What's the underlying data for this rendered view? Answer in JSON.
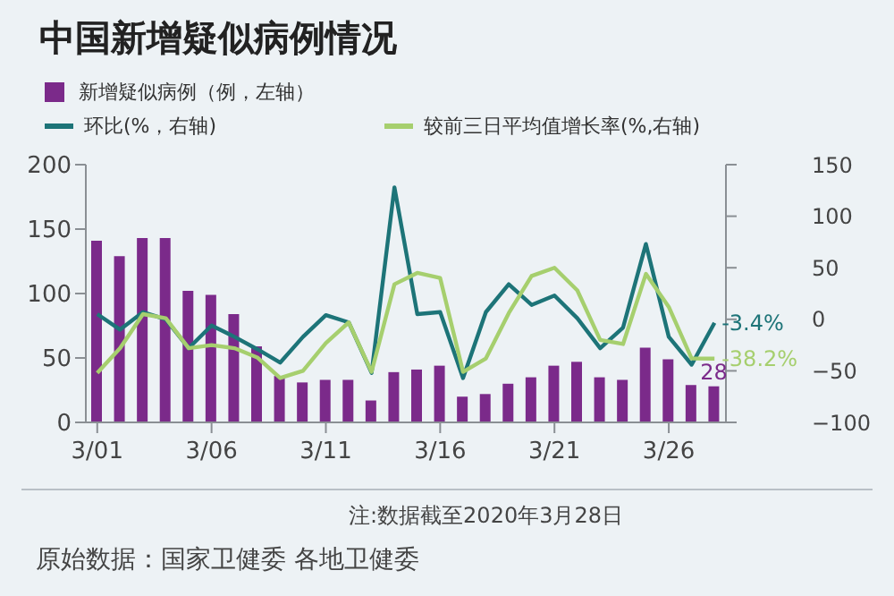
{
  "chart_data": {
    "type": "bar",
    "title": "中国新增疑似病例情况",
    "categories": [
      "3/01",
      null,
      null,
      null,
      null,
      "3/06",
      null,
      null,
      null,
      null,
      "3/11",
      null,
      null,
      null,
      null,
      "3/16",
      null,
      null,
      null,
      null,
      "3/21",
      null,
      null,
      null,
      null,
      "3/26",
      null,
      null
    ],
    "series": [
      {
        "name": "新增疑似病例（例，左轴）",
        "color": "#7b2a8a",
        "values": [
          141,
          129,
          143,
          143,
          102,
          99,
          84,
          59,
          36,
          31,
          33,
          33,
          17,
          39,
          41,
          44,
          20,
          22,
          30,
          35,
          44,
          47,
          35,
          33,
          58,
          49,
          29,
          28
        ],
        "value_labels": [
          null,
          null,
          null,
          null,
          null,
          null,
          null,
          null,
          null,
          null,
          null,
          null,
          null,
          null,
          null,
          null,
          null,
          null,
          null,
          null,
          null,
          null,
          null,
          null,
          null,
          null,
          null,
          "28"
        ]
      },
      {
        "type": "line",
        "axis": "y2",
        "name": "环比(%，右轴)",
        "color": "#1d7478",
        "values": [
          5,
          -10,
          7,
          0,
          -28,
          -6,
          -17,
          -29,
          -42,
          -17,
          4,
          -3,
          -52,
          128,
          5,
          7,
          -57,
          7,
          34,
          14,
          23,
          1,
          -28,
          -8,
          73,
          -17,
          -44,
          -3.4
        ],
        "value_labels": [
          null,
          null,
          null,
          null,
          null,
          null,
          null,
          null,
          null,
          null,
          null,
          null,
          null,
          null,
          null,
          null,
          null,
          null,
          null,
          null,
          null,
          null,
          null,
          null,
          null,
          null,
          null,
          "-3.4%"
        ]
      },
      {
        "type": "line",
        "axis": "y2",
        "name": "较前三日平均值增长率(%,右轴)",
        "color": "#a6cf6e",
        "values": [
          -52,
          -28,
          5,
          1,
          -28,
          -25,
          -28,
          -37,
          -57,
          -50,
          -23,
          -3,
          -51,
          34,
          45,
          40,
          -51,
          -38,
          6,
          42,
          50,
          28,
          -20,
          -24,
          44,
          12,
          -38,
          -38.2
        ],
        "value_labels": [
          null,
          null,
          null,
          null,
          null,
          null,
          null,
          null,
          null,
          null,
          null,
          null,
          null,
          null,
          null,
          null,
          null,
          null,
          null,
          null,
          null,
          null,
          null,
          null,
          null,
          null,
          null,
          "-38.2%"
        ]
      }
    ],
    "ylim": [
      0,
      200
    ],
    "yticks": [
      0,
      50,
      100,
      150,
      200
    ],
    "y2lim": [
      -100,
      150
    ],
    "y2ticks": [
      {
        "value": -100,
        "label": "−100"
      },
      {
        "value": -50,
        "label": "−50"
      },
      0,
      50,
      100,
      150
    ],
    "legend": "top",
    "marker": "none",
    "line_style": "solid",
    "annotations": [
      "注:数据截至2020年3月28日",
      "原始数据：国家卫健委 各地卫健委"
    ]
  }
}
